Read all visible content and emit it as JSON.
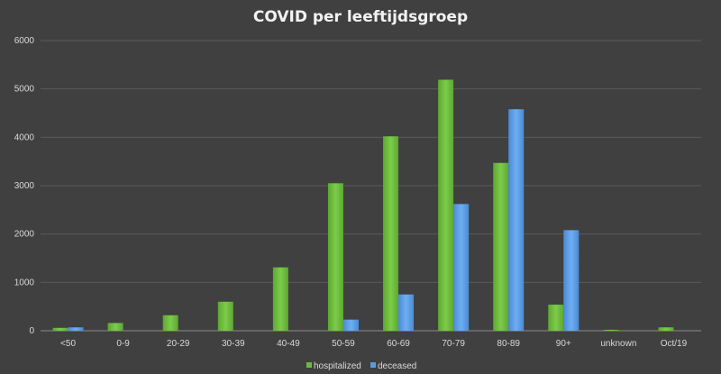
{
  "chart_data": {
    "type": "bar",
    "title": "COVID per leeftijdsgroep",
    "xlabel": "",
    "ylabel": "",
    "ylim": [
      0,
      6000
    ],
    "yticks": [
      0,
      1000,
      2000,
      3000,
      4000,
      5000,
      6000
    ],
    "grid": true,
    "legend_position": "bottom",
    "categories": [
      "<50",
      "0-9",
      "20-29",
      "30-39",
      "40-49",
      "50-59",
      "60-69",
      "70-79",
      "80-89",
      "90+",
      "unknown",
      "Oct/19"
    ],
    "series": [
      {
        "name": "hospitalized",
        "color": "#6fb840",
        "values": [
          60,
          160,
          320,
          600,
          1310,
          3050,
          4020,
          5190,
          3470,
          540,
          20,
          70
        ]
      },
      {
        "name": "deceased",
        "color": "#5a9be0",
        "values": [
          70,
          0,
          0,
          0,
          0,
          230,
          750,
          2620,
          4580,
          2080,
          0,
          0
        ]
      }
    ]
  }
}
